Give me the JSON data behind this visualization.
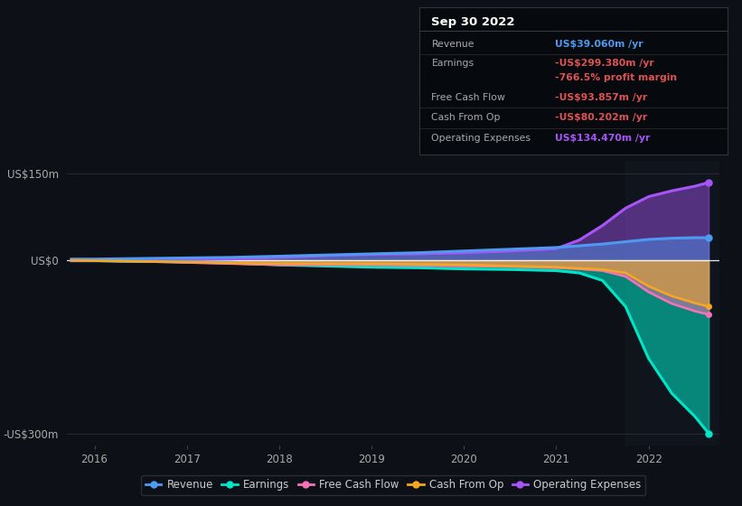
{
  "bg_color": "#0d1117",
  "plot_bg_color": "#0d1117",
  "title_box": {
    "date": "Sep 30 2022",
    "rows": [
      {
        "label": "Revenue",
        "value": "US$39.060m /yr",
        "value_color": "#4e9af1",
        "label_color": "#aaaaaa"
      },
      {
        "label": "Earnings",
        "value": "-US$299.380m /yr",
        "value_color": "#e05252",
        "label_color": "#aaaaaa"
      },
      {
        "label": "",
        "value": "-766.5% profit margin",
        "value_color": "#e05252",
        "label_color": "#aaaaaa"
      },
      {
        "label": "Free Cash Flow",
        "value": "-US$93.857m /yr",
        "value_color": "#e05252",
        "label_color": "#aaaaaa"
      },
      {
        "label": "Cash From Op",
        "value": "-US$80.202m /yr",
        "value_color": "#e05252",
        "label_color": "#aaaaaa"
      },
      {
        "label": "Operating Expenses",
        "value": "US$134.470m /yr",
        "value_color": "#a855f7",
        "label_color": "#aaaaaa"
      }
    ]
  },
  "years": [
    2015.75,
    2016.0,
    2016.5,
    2017.0,
    2017.5,
    2018.0,
    2018.5,
    2019.0,
    2019.5,
    2020.0,
    2020.5,
    2021.0,
    2021.25,
    2021.5,
    2021.75,
    2022.0,
    2022.25,
    2022.5,
    2022.65
  ],
  "revenue": [
    2,
    2,
    3,
    4,
    5,
    7,
    9,
    11,
    13,
    16,
    19,
    22,
    25,
    28,
    32,
    36,
    38,
    39,
    39.06
  ],
  "earnings": [
    -1,
    -1,
    -2,
    -3,
    -5,
    -8,
    -10,
    -12,
    -13,
    -15,
    -16,
    -18,
    -22,
    -35,
    -80,
    -170,
    -230,
    -270,
    -299.38
  ],
  "free_cash_flow": [
    -1,
    -1,
    -2,
    -4,
    -6,
    -8,
    -8,
    -8,
    -9,
    -10,
    -11,
    -13,
    -15,
    -18,
    -28,
    -55,
    -75,
    -88,
    -93.857
  ],
  "cash_from_op": [
    0,
    -1,
    -2,
    -3,
    -5,
    -6,
    -6,
    -6,
    -7,
    -8,
    -10,
    -12,
    -14,
    -16,
    -22,
    -45,
    -62,
    -74,
    -80.202
  ],
  "operating_expenses": [
    0,
    0,
    0,
    1,
    2,
    5,
    8,
    10,
    11,
    13,
    16,
    20,
    35,
    60,
    90,
    110,
    120,
    128,
    134.47
  ],
  "revenue_color": "#4e9af1",
  "earnings_color": "#00e5c8",
  "free_cash_flow_color": "#f472b6",
  "cash_from_op_color": "#f5a623",
  "operating_expenses_color": "#a855f7",
  "line_width": 2.2,
  "ylim": [
    -320,
    170
  ],
  "yticks": [
    -300,
    0,
    150
  ],
  "ytick_labels": [
    "-US$300m",
    "US$0",
    "US$150m"
  ],
  "xticks": [
    2016,
    2017,
    2018,
    2019,
    2020,
    2021,
    2022
  ],
  "highlight_x": 2021.75,
  "grid_color": "#2a2f3a",
  "zero_line_color": "#ffffff",
  "legend_labels": [
    "Revenue",
    "Earnings",
    "Free Cash Flow",
    "Cash From Op",
    "Operating Expenses"
  ]
}
